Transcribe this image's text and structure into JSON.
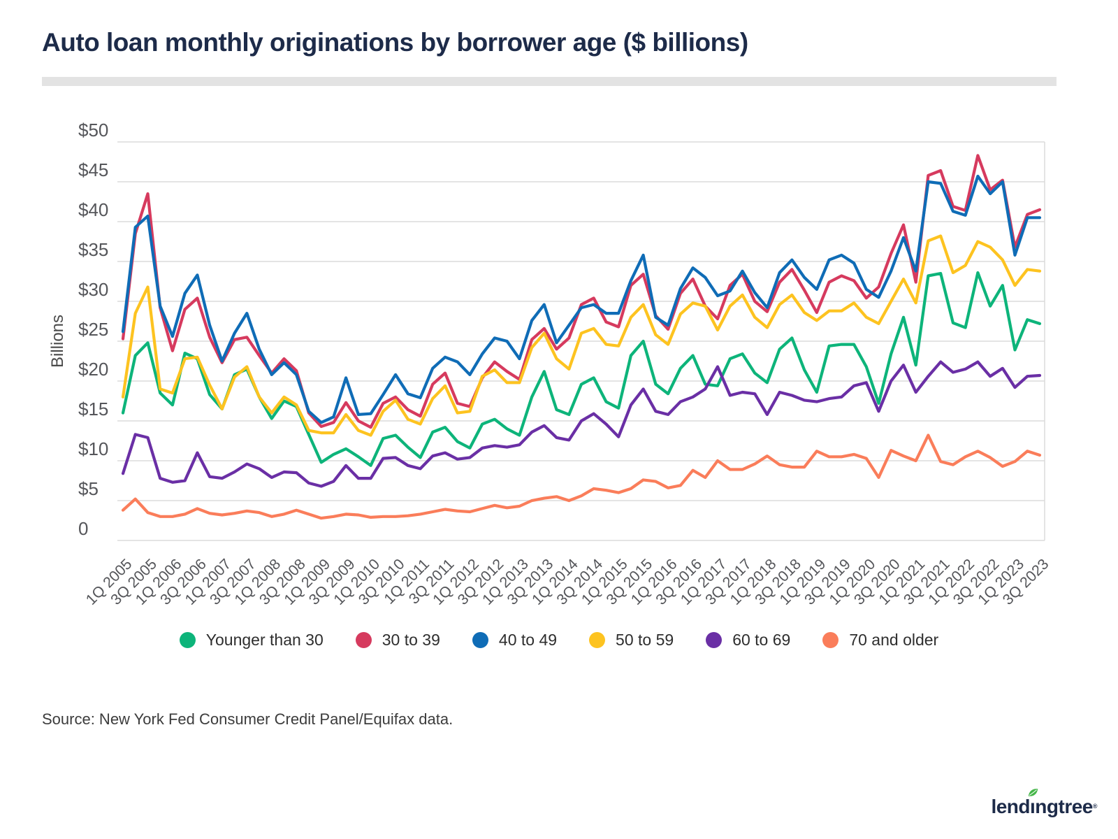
{
  "title": "Auto loan monthly originations by borrower age ($ billions)",
  "source_note": "Source: New York Fed Consumer Credit Panel/Equifax data.",
  "logo": {
    "pre": "lend",
    "i": "ı",
    "post": "ngtree",
    "mark": "®",
    "leaf_color": "#45b649",
    "text_color": "#1d2b49"
  },
  "colors": {
    "title": "#1d2b49",
    "axis_text": "#55565a",
    "gridline": "#dbdbdb",
    "divider": "#e3e3e3"
  },
  "chart_data": {
    "type": "line",
    "title": "Auto loan monthly originations by borrower age ($ billions)",
    "ylabel": "Billions",
    "ylim": [
      0,
      50
    ],
    "ytick_step": 5,
    "grid": "horizontal",
    "legend_position": "bottom",
    "y_tick_labels": [
      "$50",
      "$45",
      "$40",
      "$35",
      "$30",
      "$25",
      "$20",
      "$15",
      "$10",
      "$5",
      "0"
    ],
    "x_start_label": "1Q 2005",
    "x_end_label": "3Q 2023",
    "x_frequency": "quarterly",
    "points_per_series": 75,
    "x_tick_every": 2,
    "x_tick_labels": [
      "1Q 2005",
      "3Q 2005",
      "1Q 2006",
      "3Q 2006",
      "1Q 2007",
      "3Q 2007",
      "1Q 2008",
      "3Q 2008",
      "1Q 2009",
      "3Q 2009",
      "1Q 2010",
      "3Q 2010",
      "1Q 2011",
      "3Q 2011",
      "1Q 2012",
      "3Q 2012",
      "1Q 2013",
      "3Q 2013",
      "1Q 2014",
      "3Q 2014",
      "1Q 2015",
      "3Q 2015",
      "1Q 2016",
      "3Q 2016",
      "1Q 2017",
      "3Q 2017",
      "1Q 2018",
      "3Q 2018",
      "1Q 2019",
      "3Q 2019",
      "1Q 2020",
      "3Q 2020",
      "1Q 2021",
      "3Q 2021",
      "1Q 2022",
      "3Q 2022",
      "1Q 2023",
      "3Q 2023"
    ],
    "series": [
      {
        "name": "Younger than 30",
        "color": "#0db47a",
        "values": [
          16.0,
          23.2,
          24.8,
          18.5,
          17.0,
          23.5,
          22.8,
          18.3,
          16.5,
          20.8,
          21.5,
          18.0,
          15.3,
          17.5,
          16.8,
          13.3,
          9.8,
          10.8,
          11.5,
          10.5,
          9.4,
          12.8,
          13.2,
          11.7,
          10.4,
          13.6,
          14.2,
          12.4,
          11.6,
          14.6,
          15.2,
          14.0,
          13.2,
          18.0,
          21.2,
          16.4,
          15.8,
          19.6,
          20.4,
          17.4,
          16.6,
          23.2,
          25.0,
          19.6,
          18.4,
          21.6,
          23.2,
          19.6,
          19.4,
          22.8,
          23.4,
          21.0,
          19.8,
          24.0,
          25.4,
          21.4,
          18.6,
          24.4,
          24.6,
          24.6,
          21.8,
          17.2,
          23.4,
          28.0,
          22.0,
          33.2,
          33.5,
          27.3,
          26.7,
          33.6,
          29.4,
          32.0,
          23.9,
          27.7,
          27.2
        ]
      },
      {
        "name": "30 to 39",
        "color": "#d63a5e",
        "values": [
          25.3,
          38.5,
          43.5,
          29.2,
          23.8,
          29.0,
          30.4,
          25.5,
          22.3,
          25.2,
          25.5,
          23.2,
          21.0,
          22.8,
          21.3,
          16.0,
          14.3,
          14.8,
          17.3,
          15.0,
          14.2,
          17.2,
          18.0,
          16.4,
          15.6,
          19.6,
          21.0,
          17.2,
          16.8,
          20.4,
          22.4,
          21.2,
          20.2,
          25.2,
          26.6,
          24.0,
          25.4,
          29.6,
          30.4,
          27.4,
          26.8,
          32.0,
          33.4,
          28.2,
          26.5,
          31.0,
          32.8,
          29.4,
          27.8,
          32.0,
          33.4,
          30.0,
          28.7,
          32.4,
          34.0,
          31.4,
          28.6,
          32.4,
          33.2,
          32.6,
          30.4,
          31.8,
          36.0,
          39.6,
          32.4,
          45.8,
          46.4,
          41.9,
          41.4,
          48.3,
          44.0,
          45.2,
          36.8,
          40.9,
          41.5
        ]
      },
      {
        "name": "40 to 49",
        "color": "#0f6cb6",
        "values": [
          26.2,
          39.3,
          40.7,
          29.4,
          25.6,
          31.0,
          33.3,
          27.0,
          22.5,
          26.0,
          28.5,
          24.0,
          20.8,
          22.3,
          20.8,
          16.2,
          14.8,
          15.5,
          20.4,
          15.8,
          15.9,
          18.3,
          20.8,
          18.4,
          17.9,
          21.6,
          23.0,
          22.4,
          20.8,
          23.4,
          25.4,
          25.0,
          22.8,
          27.6,
          29.6,
          24.8,
          27.0,
          29.2,
          29.6,
          28.5,
          28.5,
          32.6,
          35.8,
          28.0,
          27.0,
          31.6,
          34.2,
          33.0,
          30.7,
          31.3,
          33.8,
          31.1,
          29.2,
          33.6,
          35.2,
          33.0,
          31.5,
          35.2,
          35.8,
          34.8,
          31.5,
          30.5,
          33.8,
          38.0,
          33.8,
          45.0,
          44.8,
          41.3,
          40.8,
          45.7,
          43.5,
          45.0,
          35.8,
          40.5,
          40.5
        ]
      },
      {
        "name": "50 to 59",
        "color": "#fdc320",
        "values": [
          18.0,
          28.5,
          31.8,
          19.0,
          18.5,
          22.8,
          23.0,
          19.5,
          16.5,
          20.5,
          21.8,
          18.0,
          16.0,
          18.0,
          17.0,
          13.8,
          13.5,
          13.5,
          15.8,
          13.8,
          13.2,
          16.2,
          17.6,
          15.2,
          14.6,
          17.8,
          19.4,
          16.0,
          16.2,
          20.6,
          21.4,
          19.8,
          19.8,
          24.2,
          26.0,
          22.8,
          21.5,
          26.0,
          26.6,
          24.6,
          24.4,
          28.0,
          29.6,
          25.8,
          24.6,
          28.4,
          29.8,
          29.4,
          26.4,
          29.4,
          30.8,
          28.0,
          26.7,
          29.6,
          30.8,
          28.6,
          27.6,
          28.8,
          28.8,
          29.8,
          28.0,
          27.2,
          30.0,
          32.8,
          29.8,
          37.6,
          38.2,
          33.6,
          34.5,
          37.5,
          36.8,
          35.2,
          32.0,
          34.0,
          33.8
        ]
      },
      {
        "name": "60 to 69",
        "color": "#6a2fa5",
        "values": [
          8.4,
          13.3,
          12.9,
          7.8,
          7.3,
          7.5,
          11.0,
          8.0,
          7.8,
          8.6,
          9.6,
          9.0,
          7.9,
          8.6,
          8.5,
          7.2,
          6.8,
          7.4,
          9.4,
          7.8,
          7.8,
          10.3,
          10.4,
          9.4,
          9.0,
          10.6,
          11.0,
          10.2,
          10.4,
          11.6,
          11.9,
          11.7,
          12.0,
          13.6,
          14.4,
          12.9,
          12.6,
          15.0,
          15.9,
          14.6,
          13.0,
          17.0,
          19.0,
          16.2,
          15.8,
          17.4,
          18.0,
          19.0,
          21.8,
          18.2,
          18.6,
          18.4,
          15.8,
          18.6,
          18.2,
          17.6,
          17.4,
          17.8,
          18.0,
          19.4,
          19.8,
          16.2,
          20.0,
          22.0,
          18.6,
          20.6,
          22.4,
          21.1,
          21.5,
          22.4,
          20.6,
          21.6,
          19.2,
          20.6,
          20.7
        ]
      },
      {
        "name": "70 and older",
        "color": "#fa7d5a",
        "values": [
          3.8,
          5.2,
          3.5,
          3.0,
          3.0,
          3.3,
          4.0,
          3.4,
          3.2,
          3.4,
          3.7,
          3.5,
          3.0,
          3.3,
          3.8,
          3.3,
          2.8,
          3.0,
          3.3,
          3.2,
          2.9,
          3.0,
          3.0,
          3.1,
          3.3,
          3.6,
          3.9,
          3.7,
          3.6,
          4.0,
          4.4,
          4.1,
          4.3,
          5.0,
          5.3,
          5.5,
          5.0,
          5.6,
          6.5,
          6.3,
          6.0,
          6.5,
          7.6,
          7.4,
          6.6,
          6.9,
          8.8,
          7.9,
          10.0,
          8.9,
          8.9,
          9.6,
          10.6,
          9.5,
          9.2,
          9.2,
          11.2,
          10.5,
          10.5,
          10.8,
          10.3,
          7.9,
          11.3,
          10.6,
          10.0,
          13.2,
          9.9,
          9.5,
          10.5,
          11.2,
          10.4,
          9.3,
          9.9,
          11.2,
          10.7
        ]
      }
    ]
  }
}
